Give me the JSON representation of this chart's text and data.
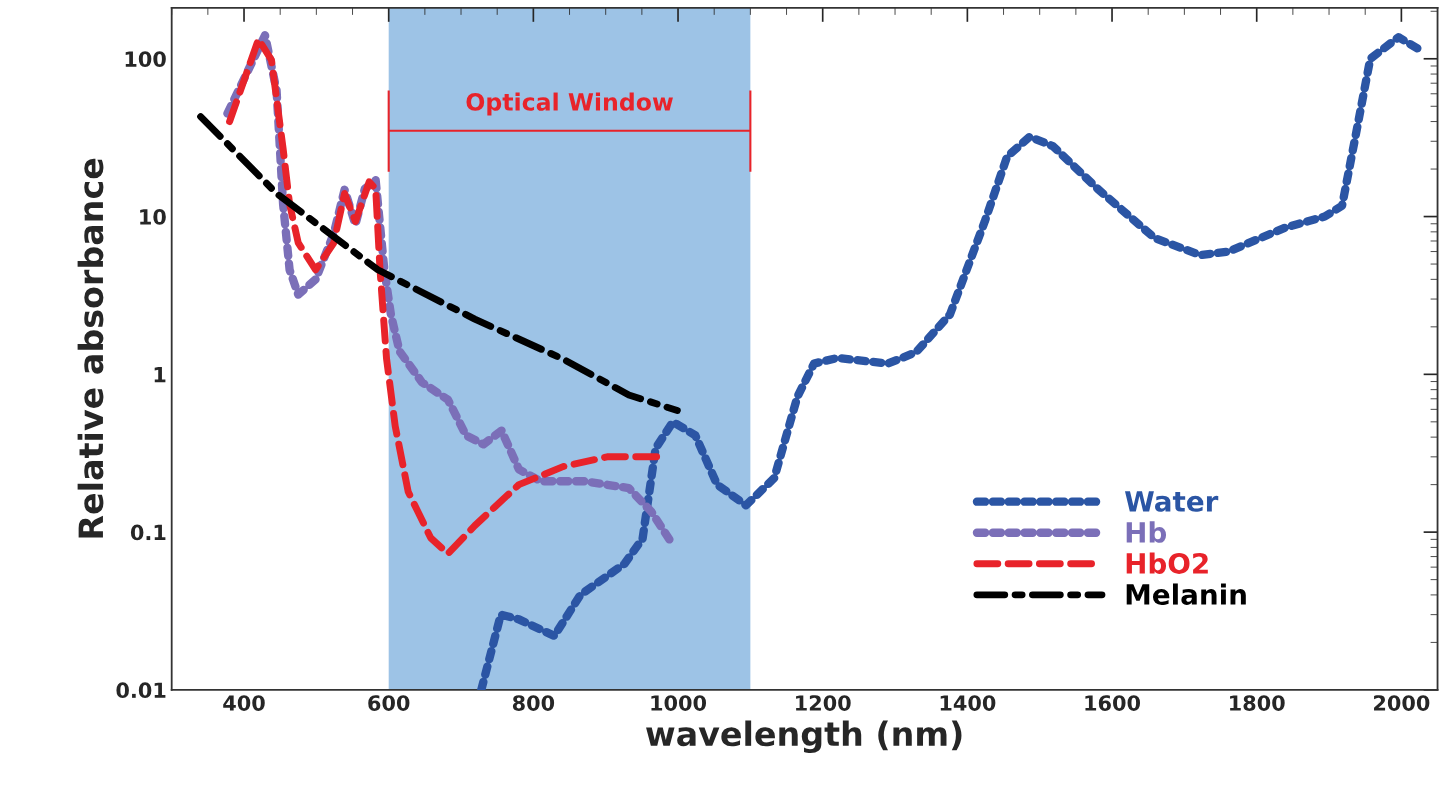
{
  "chart_data": {
    "type": "line",
    "xlabel": "wavelength (nm)",
    "ylabel": "Relative absorbance",
    "log": "y",
    "xlim": [
      300,
      2050
    ],
    "ylim": [
      0.01,
      210
    ],
    "xticks": [
      400,
      600,
      800,
      1000,
      1200,
      1400,
      1600,
      1800,
      2000
    ],
    "yticks": [
      0.01,
      0.1,
      1,
      10,
      100
    ],
    "grid": false,
    "legend": "bottom right",
    "bands": [
      {
        "axis": "x",
        "from": 600,
        "to": 1100,
        "label": "Optical Window",
        "color": "#9dc3e6"
      }
    ],
    "series": [
      {
        "name": "Water",
        "color": "#2b55a4",
        "line_style": "dotted",
        "x": [
          728,
          755,
          780,
          829,
          865,
          926,
          951,
          969,
          993,
          1024,
          1054,
          1094,
          1133,
          1165,
          1188,
          1220,
          1290,
          1329,
          1376,
          1424,
          1455,
          1486,
          1518,
          1580,
          1659,
          1722,
          1761,
          1839,
          1894,
          1918,
          1937,
          1957,
          1996,
          2027
        ],
        "values": [
          0.01,
          0.03,
          0.028,
          0.022,
          0.04,
          0.063,
          0.091,
          0.34,
          0.5,
          0.41,
          0.2,
          0.148,
          0.22,
          0.72,
          1.17,
          1.27,
          1.17,
          1.38,
          2.4,
          9.3,
          24,
          32,
          28,
          15,
          7.3,
          5.7,
          6.0,
          8.5,
          10,
          11.7,
          33,
          100,
          137,
          113
        ]
      },
      {
        "name": "Hb",
        "color": "#7b6fb8",
        "line_style": "dotted",
        "x": [
          377,
          429,
          445,
          454,
          463,
          475,
          499,
          524,
          539,
          554,
          567,
          582,
          594,
          603,
          615,
          646,
          682,
          707,
          731,
          756,
          780,
          810,
          871,
          932,
          963,
          993
        ],
        "values": [
          45,
          141,
          63,
          12,
          4.6,
          3.2,
          4.0,
          7.8,
          14.8,
          8.9,
          15,
          17,
          4.6,
          2.4,
          1.4,
          0.89,
          0.69,
          0.41,
          0.36,
          0.44,
          0.25,
          0.21,
          0.21,
          0.19,
          0.135,
          0.083
        ]
      },
      {
        "name": "HbO2",
        "color": "#e8232a",
        "line_style": "dashed",
        "x": [
          380,
          420,
          438,
          454,
          463,
          475,
          499,
          524,
          539,
          554,
          573,
          582,
          588,
          597,
          609,
          627,
          658,
          682,
          719,
          780,
          841,
          902,
          975
        ],
        "values": [
          40,
          133,
          98,
          27,
          12,
          6.8,
          4.6,
          6.8,
          14,
          9.3,
          16.6,
          15,
          4.6,
          1.26,
          0.47,
          0.18,
          0.092,
          0.073,
          0.11,
          0.2,
          0.26,
          0.3,
          0.3
        ]
      },
      {
        "name": "Melanin",
        "color": "#000000",
        "line_style": "dashdot",
        "x": [
          340,
          445,
          585,
          719,
          841,
          932,
          999
        ],
        "values": [
          43,
          14,
          4.6,
          2.24,
          1.25,
          0.74,
          0.59
        ]
      }
    ]
  }
}
